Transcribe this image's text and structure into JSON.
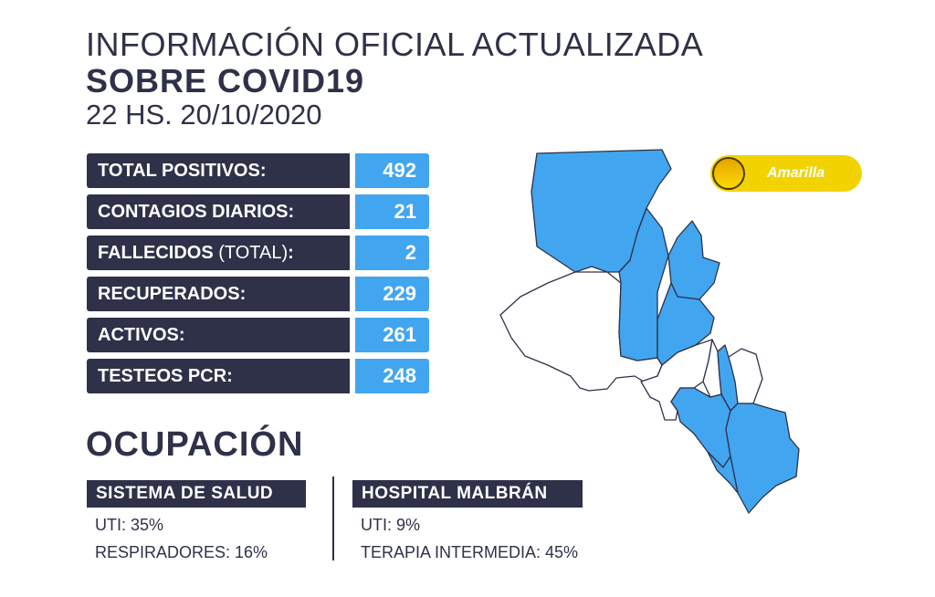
{
  "header": {
    "line1": "INFORMACIÓN OFICIAL ACTUALIZADA",
    "line2": "SOBRE COVID19",
    "line3": "22 HS. 20/10/2020"
  },
  "stats": [
    {
      "label": "TOTAL POSITIVOS",
      "suffix": "",
      "value": "492"
    },
    {
      "label": "CONTAGIOS DIARIOS",
      "suffix": "",
      "value": "21"
    },
    {
      "label": "FALLECIDOS",
      "suffix": "(TOTAL)",
      "value": "2"
    },
    {
      "label": "RECUPERADOS",
      "suffix": "",
      "value": "229"
    },
    {
      "label": "ACTIVOS",
      "suffix": "",
      "value": "261"
    },
    {
      "label": "TESTEOS PCR",
      "suffix": "",
      "value": "248"
    }
  ],
  "occupancy": {
    "title": "OCUPACIÓN",
    "sistema": {
      "label": "SISTEMA DE SALUD",
      "uti": "UTI: 35%",
      "respiradores": "RESPIRADORES: 16%"
    },
    "malbran": {
      "label": "HOSPITAL MALBRÁN",
      "uti": "UTI: 9%",
      "terapia": "TERAPIA INTERMEDIA: 45%"
    }
  },
  "badge": {
    "label": "Amarilla"
  },
  "colors": {
    "navy": "#2e3148",
    "blue": "#42a5f0",
    "yellow": "#f2d300",
    "white": "#ffffff"
  },
  "icons": {
    "badge": "sun-icon",
    "map": "province-map"
  }
}
